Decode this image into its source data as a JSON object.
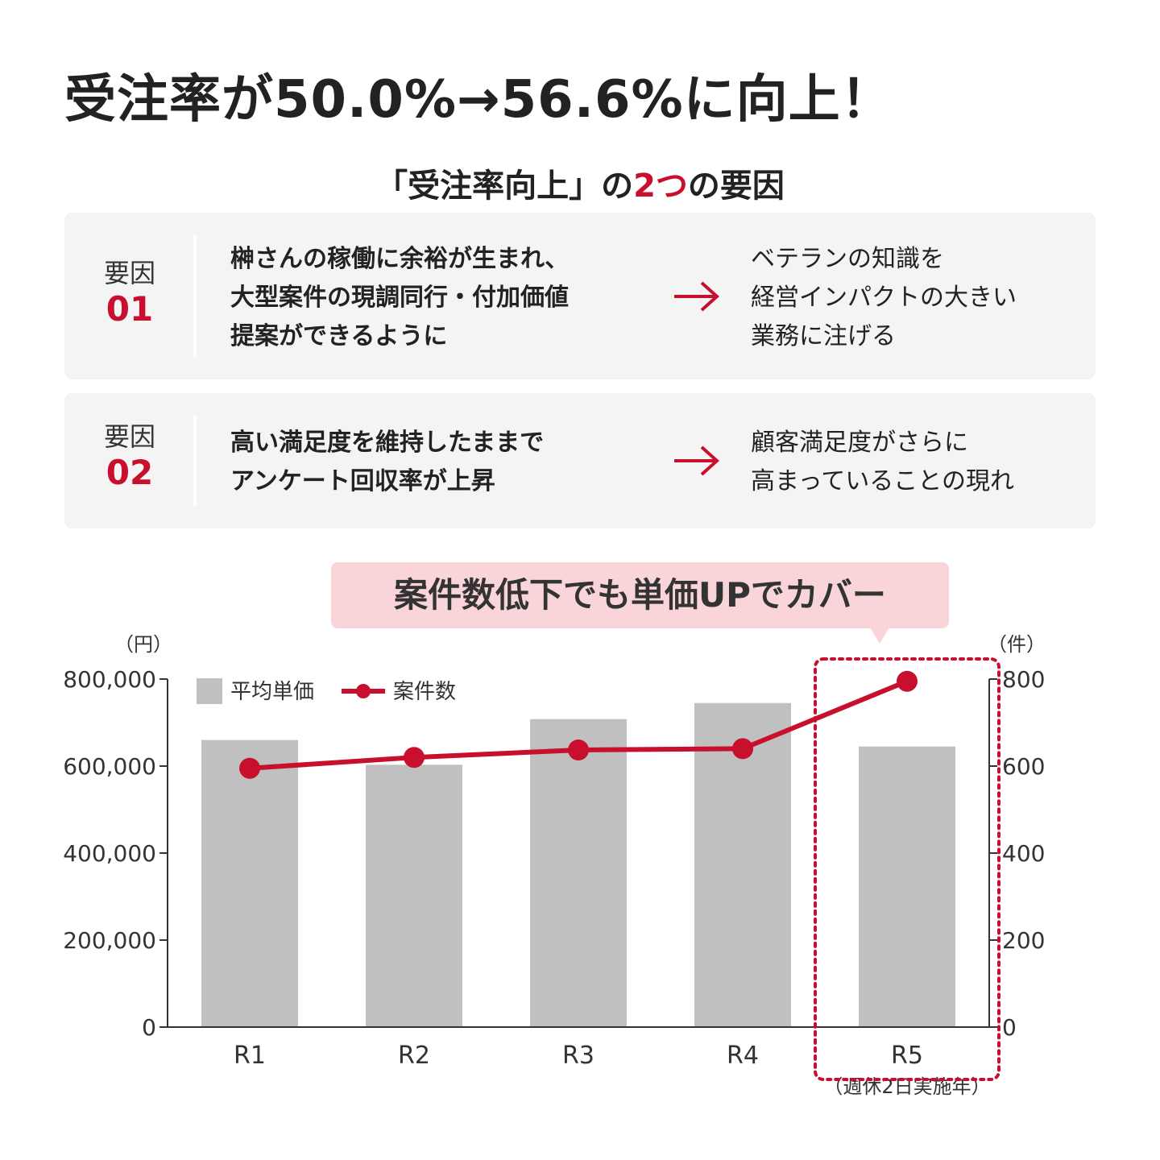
{
  "headline": "受注率が50.0%→56.6%に向上！",
  "subtitle": {
    "prefix": "「受注率向上」の",
    "accent": "2つ",
    "suffix": "の要因"
  },
  "factors": [
    {
      "label": "要因",
      "number": "01",
      "cause_lines": [
        "榊さんの稼働に余裕が生まれ、",
        "大型案件の現調同行・付加価値",
        "提案ができるように"
      ],
      "effect_lines": [
        "ベテランの知識を",
        "経営インパクトの大きい",
        "業務に注げる"
      ]
    },
    {
      "label": "要因",
      "number": "02",
      "cause_lines": [
        "高い満足度を維持したままで",
        "アンケート回収率が上昇"
      ],
      "effect_lines": [
        "顧客満足度がさらに",
        "高まっていることの現れ"
      ]
    }
  ],
  "callout": "案件数低下でも単価UPでカバー",
  "colors": {
    "accent": "#c8102e",
    "bar": "#c0c0c0",
    "card_bg": "#f4f4f4",
    "callout_bg": "#f9d5da"
  },
  "chart_data": {
    "type": "bar",
    "categories": [
      "R1",
      "R2",
      "R3",
      "R4",
      "R5"
    ],
    "category_notes": [
      "",
      "",
      "",
      "",
      "（週休2日実施年）"
    ],
    "series": [
      {
        "name": "平均単価",
        "type": "bar",
        "axis": "left",
        "values": [
          660000,
          603000,
          708000,
          745000,
          645000
        ]
      },
      {
        "name": "案件数",
        "type": "line",
        "axis": "right",
        "values": [
          595,
          620,
          637,
          640,
          795
        ]
      }
    ],
    "y_left": {
      "unit": "（円）",
      "ticks": [
        "800,000",
        "600,000",
        "400,000",
        "200,000",
        "0"
      ],
      "ylim": [
        0,
        800000
      ]
    },
    "y_right": {
      "unit": "（件）",
      "ticks": [
        "800",
        "600",
        "400",
        "200",
        "0"
      ],
      "ylim": [
        0,
        800
      ]
    },
    "highlight_category": "R5",
    "legend_position": "top-left",
    "grid": false
  }
}
